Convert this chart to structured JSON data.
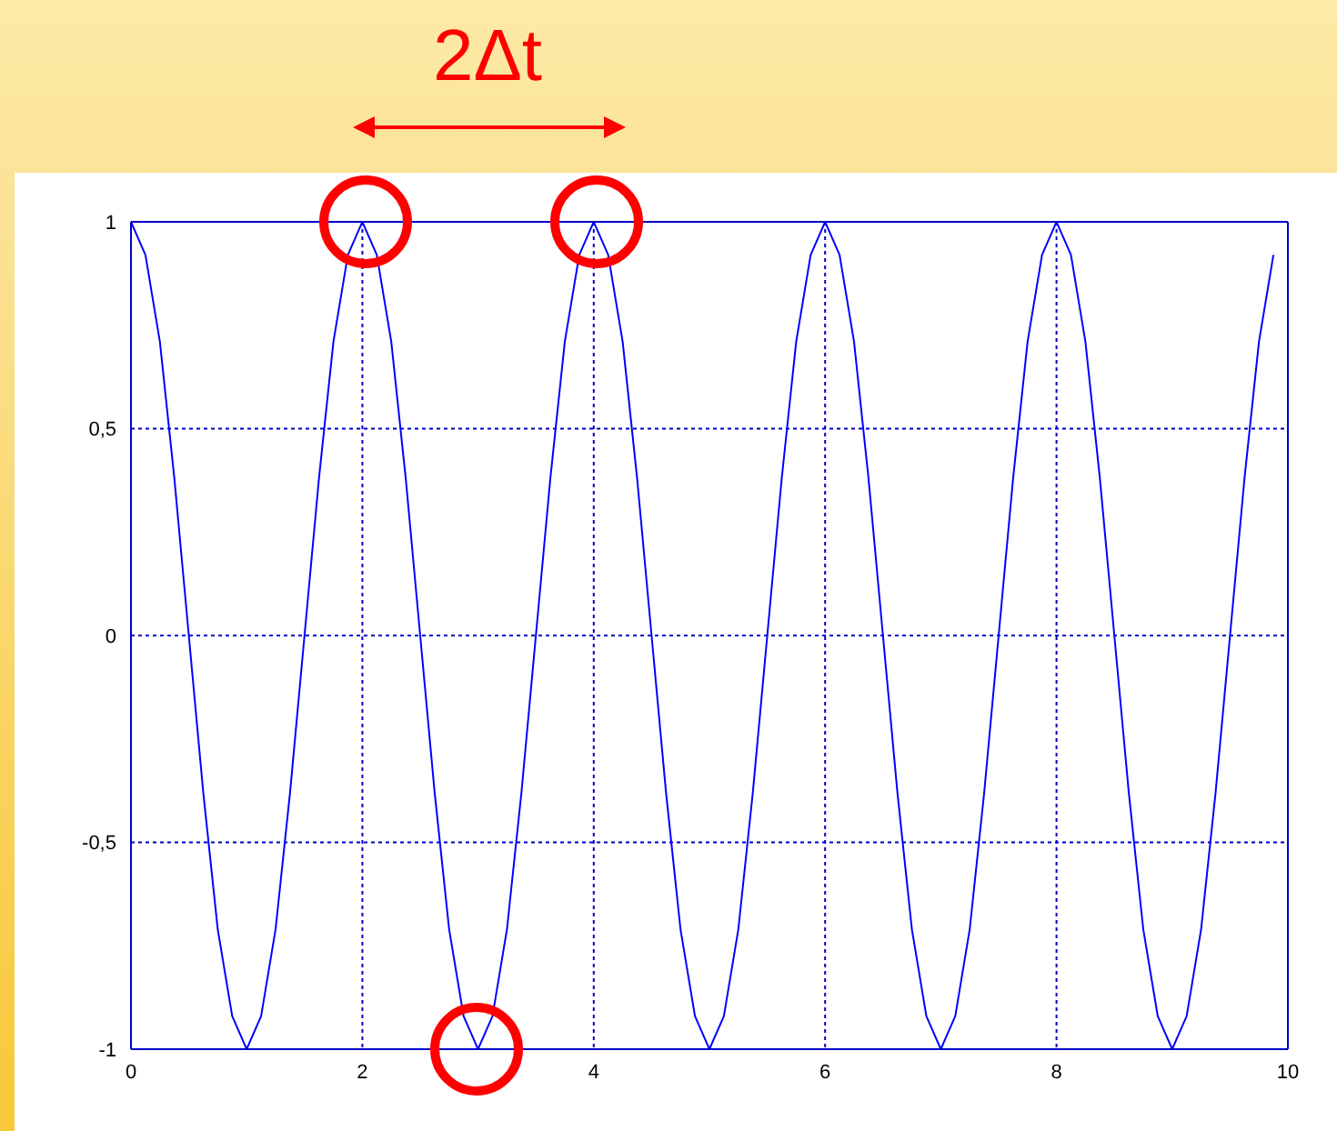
{
  "chart_data": {
    "type": "line",
    "annotations": [
      "2Δt"
    ],
    "x": [
      0,
      0.125,
      0.25,
      0.375,
      0.5,
      0.625,
      0.75,
      0.875,
      1,
      1.125,
      1.25,
      1.375,
      1.5,
      1.625,
      1.75,
      1.875,
      2,
      2.125,
      2.25,
      2.375,
      2.5,
      2.625,
      2.75,
      2.875,
      3,
      3.125,
      3.25,
      3.375,
      3.5,
      3.625,
      3.75,
      3.875,
      4,
      4.125,
      4.25,
      4.375,
      4.5,
      4.625,
      4.75,
      4.875,
      5,
      5.125,
      5.25,
      5.375,
      5.5,
      5.625,
      5.75,
      5.875,
      6,
      6.125,
      6.25,
      6.375,
      6.5,
      6.625,
      6.75,
      6.875,
      7,
      7.125,
      7.25,
      7.375,
      7.5,
      7.625,
      7.75,
      7.875,
      8,
      8.125,
      8.25,
      8.375,
      8.5,
      8.625,
      8.75,
      8.875,
      9,
      9.125,
      9.25,
      9.375,
      9.5,
      9.625,
      9.75,
      9.875
    ],
    "series": [
      {
        "color": "#0000ff",
        "values": [
          1,
          0.92,
          0.71,
          0.38,
          0,
          -0.38,
          -0.71,
          -0.92,
          -1,
          -0.92,
          -0.71,
          -0.38,
          0,
          0.38,
          0.71,
          0.92,
          1,
          0.92,
          0.71,
          0.38,
          0,
          -0.38,
          -0.71,
          -0.92,
          -1,
          -0.92,
          -0.71,
          -0.38,
          0,
          0.38,
          0.71,
          0.92,
          1,
          0.92,
          0.71,
          0.38,
          0,
          -0.38,
          -0.71,
          -0.92,
          -1,
          -0.92,
          -0.71,
          -0.38,
          0,
          0.38,
          0.71,
          0.92,
          1,
          0.92,
          0.71,
          0.38,
          0,
          -0.38,
          -0.71,
          -0.92,
          -1,
          -0.92,
          -0.71,
          -0.38,
          0,
          0.38,
          0.71,
          0.92,
          1,
          0.92,
          0.71,
          0.38,
          0,
          -0.38,
          -0.71,
          -0.92,
          -1,
          -0.92,
          -0.71,
          -0.38,
          0,
          0.38,
          0.71,
          0.92
        ]
      }
    ],
    "xlim": [
      0,
      10
    ],
    "xticks": [
      0,
      2,
      4,
      6,
      8,
      10
    ],
    "ylim": [
      -1,
      1
    ],
    "yticks": [
      {
        "value": -1,
        "label": "-1"
      },
      {
        "value": -0.5,
        "label": "-0,5"
      },
      {
        "value": 0,
        "label": "0"
      },
      {
        "value": 0.5,
        "label": "0,5"
      },
      {
        "value": 1,
        "label": "1"
      }
    ],
    "grid": true,
    "marker": "none",
    "line_style": "solid"
  }
}
